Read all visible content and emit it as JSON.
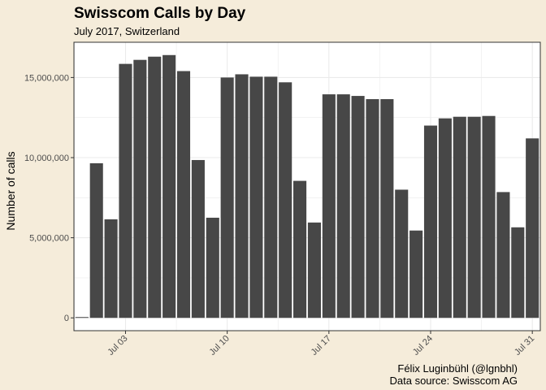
{
  "chart_data": {
    "type": "bar",
    "title": "Swisscom Calls by Day",
    "subtitle": "July 2017, Switzerland",
    "xlabel": "",
    "ylabel": "Number of calls",
    "caption": [
      "Félix Luginbühl (@lgnbhl)",
      "Data source: Swisscom AG"
    ],
    "categories": [
      "2017-06-30",
      "2017-07-01",
      "2017-07-02",
      "2017-07-03",
      "2017-07-04",
      "2017-07-05",
      "2017-07-06",
      "2017-07-07",
      "2017-07-08",
      "2017-07-09",
      "2017-07-10",
      "2017-07-11",
      "2017-07-12",
      "2017-07-13",
      "2017-07-14",
      "2017-07-15",
      "2017-07-16",
      "2017-07-17",
      "2017-07-18",
      "2017-07-19",
      "2017-07-20",
      "2017-07-21",
      "2017-07-22",
      "2017-07-23",
      "2017-07-24",
      "2017-07-25",
      "2017-07-26",
      "2017-07-27",
      "2017-07-28",
      "2017-07-29",
      "2017-07-30",
      "2017-07-31"
    ],
    "values": [
      50000,
      9650000,
      6150000,
      15850000,
      16100000,
      16300000,
      16400000,
      15400000,
      9850000,
      6250000,
      15000000,
      15200000,
      15050000,
      15050000,
      14700000,
      8550000,
      5950000,
      13950000,
      13950000,
      13850000,
      13650000,
      13650000,
      8000000,
      5450000,
      12000000,
      12450000,
      12550000,
      12550000,
      12600000,
      7850000,
      5650000,
      11200000
    ],
    "x_ticks": [
      "Jul 03",
      "Jul 10",
      "Jul 17",
      "Jul 24",
      "Jul 31"
    ],
    "x_tick_categories": [
      "2017-07-03",
      "2017-07-10",
      "2017-07-17",
      "2017-07-24",
      "2017-07-31"
    ],
    "y_ticks": [
      0,
      5000000,
      10000000,
      15000000
    ],
    "y_tick_labels": [
      "0",
      "5,000,000",
      "10,000,000",
      "15,000,000"
    ],
    "ylim": [
      -800000,
      17200000
    ],
    "grid": true,
    "colors": {
      "bar": "#474747",
      "background": "#f5ecda",
      "panel": "#ffffff",
      "grid": "#ebebeb",
      "axis": "#333333"
    }
  }
}
